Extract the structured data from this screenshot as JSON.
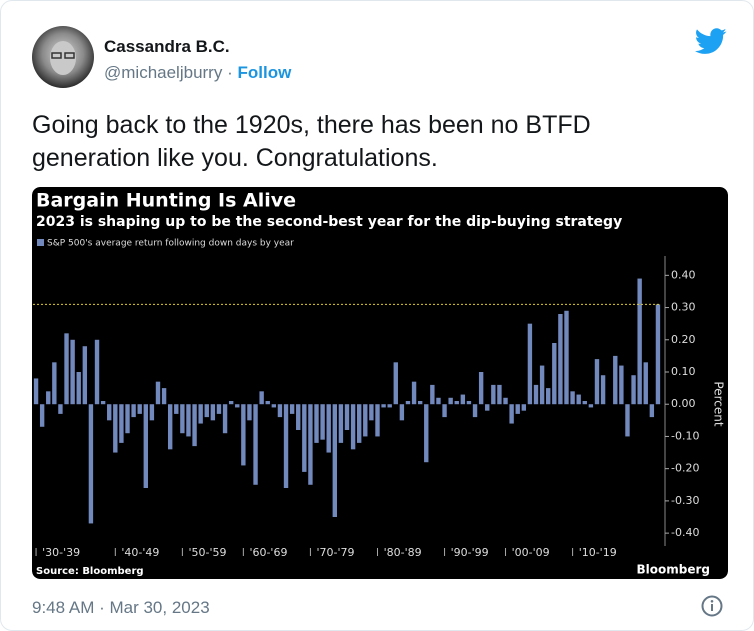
{
  "tweet": {
    "name": "Cassandra B.C.",
    "handle": "@michaeljburry",
    "separator": "·",
    "follow": "Follow",
    "text": "Going back to the 1920s, there has been no BTFD generation like you. Congratulations.",
    "timestamp": "9:48 AM · Mar 30, 2023"
  },
  "chart_data": {
    "type": "bar",
    "title": "Bargain Hunting Is Alive",
    "subtitle": "2023 is shaping up to be the second-best year for the dip-buying strategy",
    "y_label": "Percent",
    "source": "Source: Bloomberg",
    "brand": "Bloomberg",
    "categories": [
      null,
      "'30-'39",
      null,
      null,
      null,
      null,
      null,
      null,
      null,
      null,
      null,
      null,
      null,
      null,
      "'40-'49",
      null,
      null,
      null,
      null,
      null,
      null,
      null,
      null,
      null,
      null,
      "'50-'59",
      null,
      null,
      null,
      null,
      null,
      null,
      null,
      null,
      null,
      "'60-'69",
      null,
      null,
      null,
      null,
      null,
      null,
      null,
      null,
      null,
      null,
      "'70-'79",
      null,
      null,
      null,
      null,
      null,
      null,
      null,
      null,
      null,
      null,
      "'80-'89",
      null,
      null,
      null,
      null,
      null,
      null,
      null,
      null,
      null,
      null,
      "'90-'99",
      null,
      null,
      null,
      null,
      null,
      null,
      null,
      null,
      null,
      "'00-'09",
      null,
      null,
      null,
      null,
      null,
      null,
      null,
      null,
      null,
      null,
      "'10-'19",
      null,
      null,
      null,
      null,
      null,
      null,
      null,
      null,
      null,
      null,
      null,
      null,
      null
    ],
    "series": [
      {
        "name": "S&P 500's average return following down days by year",
        "color": "#7289bd",
        "values": [
          0.08,
          -0.07,
          0.04,
          0.13,
          -0.03,
          0.22,
          0.2,
          0.1,
          0.18,
          -0.37,
          0.2,
          0.01,
          -0.05,
          -0.15,
          -0.12,
          -0.09,
          -0.04,
          -0.03,
          -0.26,
          -0.05,
          0.07,
          0.05,
          -0.14,
          -0.03,
          -0.09,
          -0.1,
          -0.13,
          -0.06,
          -0.04,
          -0.05,
          -0.03,
          -0.09,
          0.01,
          -0.01,
          -0.19,
          -0.05,
          -0.25,
          0.04,
          0.01,
          -0.01,
          -0.04,
          -0.26,
          -0.03,
          -0.08,
          -0.21,
          -0.25,
          -0.12,
          -0.11,
          -0.15,
          -0.35,
          -0.12,
          -0.08,
          -0.14,
          -0.12,
          -0.1,
          -0.05,
          -0.1,
          -0.01,
          -0.01,
          0.13,
          -0.05,
          0.01,
          0.07,
          0.01,
          -0.18,
          0.06,
          0.02,
          -0.04,
          0.02,
          0.01,
          0.03,
          0.01,
          -0.04,
          0.1,
          -0.02,
          0.06,
          0.06,
          0.02,
          -0.06,
          -0.03,
          -0.02,
          0.25,
          0.06,
          0.12,
          0.05,
          0.19,
          0.28,
          0.29,
          0.04,
          0.03,
          0.01,
          -0.01,
          0.14,
          0.09,
          0.0,
          0.15,
          0.12,
          -0.1,
          0.09,
          0.39,
          0.13,
          -0.04,
          0.31
        ]
      }
    ],
    "reference_line": {
      "value": 0.31,
      "color": "#e3cf1e"
    },
    "ylim": [
      -0.44,
      0.46
    ],
    "yticks": [
      {
        "value": 0.4,
        "label": "0.40"
      },
      {
        "value": 0.3,
        "label": "0.30"
      },
      {
        "value": 0.2,
        "label": "0.20"
      },
      {
        "value": 0.1,
        "label": "0.10"
      },
      {
        "value": 0,
        "label": "0.00"
      },
      {
        "value": -0.1,
        "label": "-0.10"
      },
      {
        "value": -0.2,
        "label": "-0.20"
      },
      {
        "value": -0.3,
        "label": "-0.30"
      },
      {
        "value": -0.4,
        "label": "-0.40"
      }
    ]
  }
}
